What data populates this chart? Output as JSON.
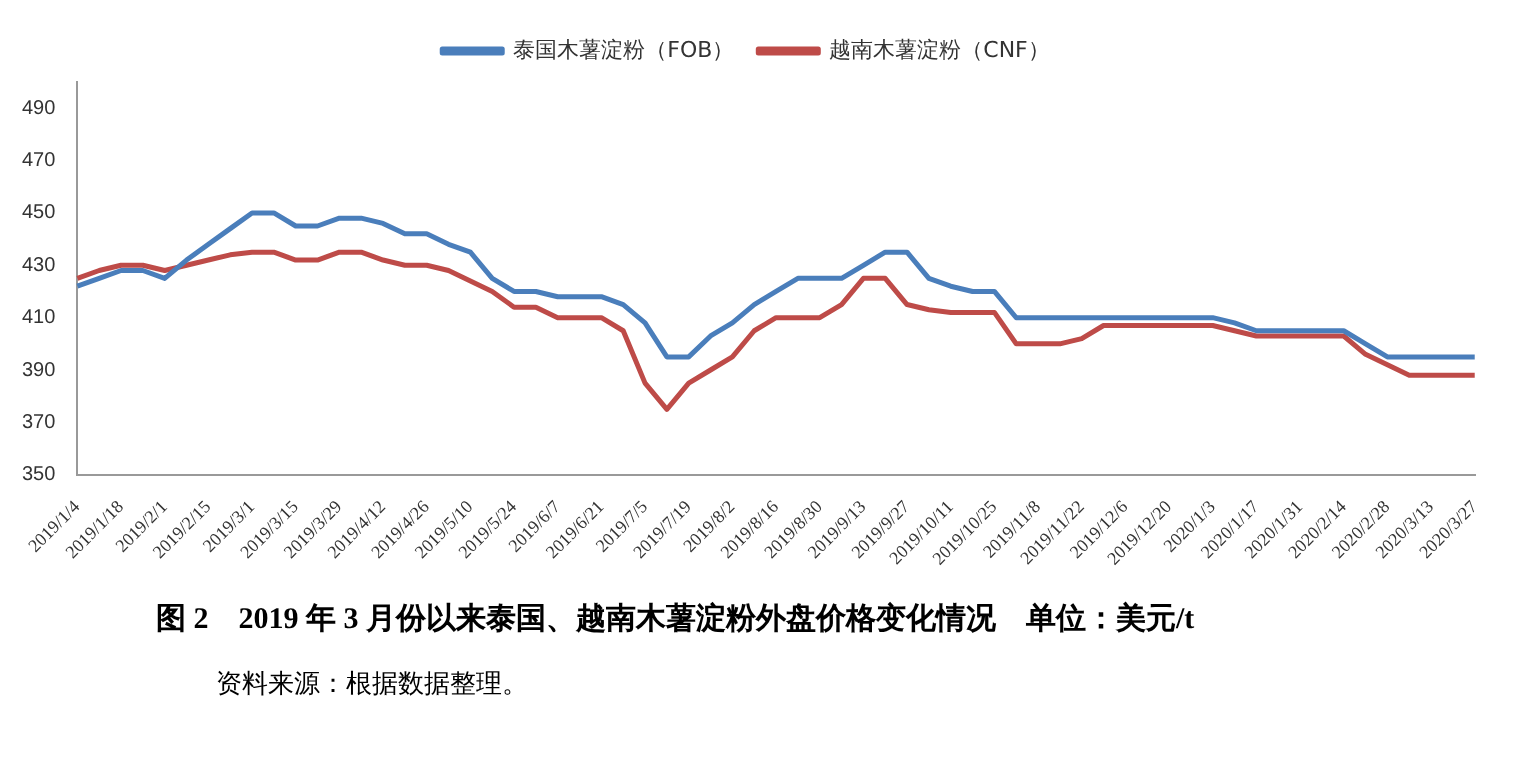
{
  "chart_data": {
    "type": "line",
    "title": "图 2　2019 年 3 月份以来泰国、越南木薯淀粉外盘价格变化情况　单位：美元/t",
    "annotations": [
      "资料来源：根据数据整理。"
    ],
    "categories": [
      "2019/1/4",
      null,
      "2019/1/18",
      null,
      "2019/2/1",
      null,
      "2019/2/15",
      null,
      "2019/3/1",
      null,
      "2019/3/15",
      null,
      "2019/3/29",
      null,
      "2019/4/12",
      null,
      "2019/4/26",
      null,
      "2019/5/10",
      null,
      "2019/5/24",
      null,
      "2019/6/7",
      null,
      "2019/6/21",
      null,
      "2019/7/5",
      null,
      "2019/7/19",
      null,
      "2019/8/2",
      null,
      "2019/8/16",
      null,
      "2019/8/30",
      null,
      "2019/9/13",
      null,
      "2019/9/27",
      null,
      "2019/10/11",
      null,
      "2019/10/25",
      null,
      "2019/11/8",
      null,
      "2019/11/22",
      null,
      "2019/12/6",
      null,
      "2019/12/20",
      null,
      "2020/1/3",
      null,
      "2020/1/17",
      null,
      "2020/1/31",
      null,
      "2020/2/14",
      null,
      "2020/2/28",
      null,
      "2020/3/13",
      null,
      "2020/3/27"
    ],
    "series": [
      {
        "name": "泰国木薯淀粉（FOB）",
        "color": "#4a7ebb",
        "values": [
          422,
          425,
          428,
          428,
          425,
          432,
          438,
          444,
          450,
          450,
          445,
          445,
          448,
          448,
          446,
          442,
          442,
          438,
          435,
          425,
          420,
          420,
          418,
          418,
          418,
          415,
          408,
          395,
          395,
          403,
          408,
          415,
          420,
          425,
          425,
          425,
          430,
          435,
          435,
          425,
          422,
          420,
          420,
          410,
          410,
          410,
          410,
          410,
          410,
          410,
          410,
          410,
          410,
          408,
          405,
          405,
          405,
          405,
          405,
          400,
          395,
          395,
          395,
          395,
          395
        ]
      },
      {
        "name": "越南木薯淀粉（CNF）",
        "color": "#be4b48",
        "values": [
          425,
          428,
          430,
          430,
          428,
          430,
          432,
          434,
          435,
          435,
          432,
          432,
          435,
          435,
          432,
          430,
          430,
          428,
          424,
          420,
          414,
          414,
          410,
          410,
          410,
          405,
          385,
          375,
          385,
          390,
          395,
          405,
          410,
          410,
          410,
          415,
          425,
          425,
          415,
          413,
          412,
          412,
          412,
          400,
          400,
          400,
          402,
          407,
          407,
          407,
          407,
          407,
          407,
          405,
          403,
          403,
          403,
          403,
          403,
          396,
          392,
          388,
          388,
          388,
          388
        ]
      }
    ],
    "ylim": [
      350,
      500
    ],
    "yticks": [
      350,
      370,
      390,
      410,
      430,
      450,
      470,
      490
    ],
    "grid": false,
    "legend": "top"
  }
}
